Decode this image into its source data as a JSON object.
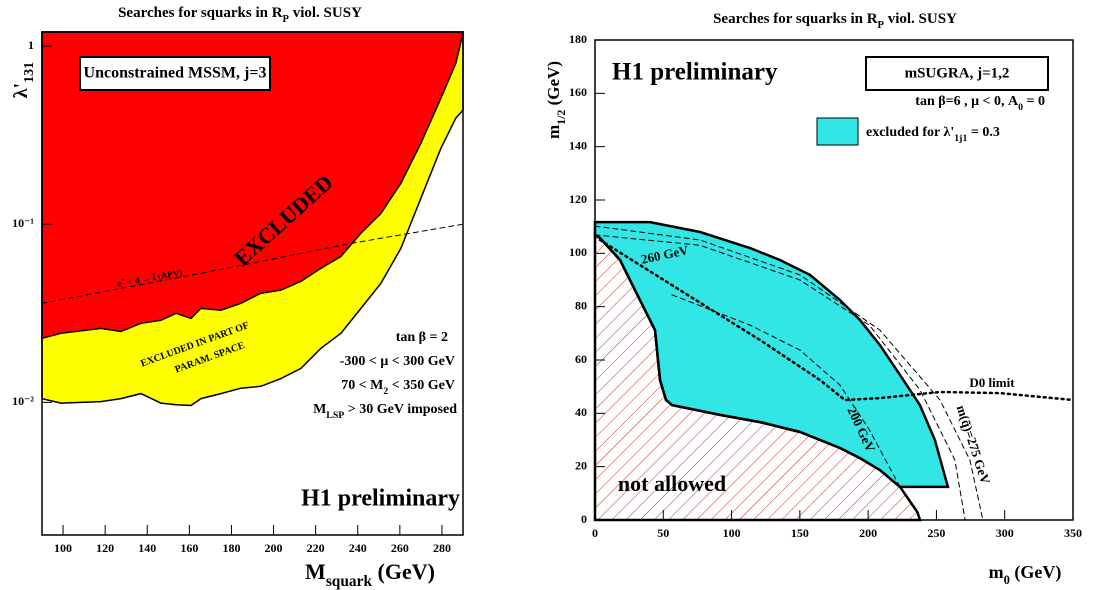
{
  "chart_data": [
    {
      "type": "area",
      "title": [
        {
          "t": "Searches for squarks in R"
        },
        {
          "sub": "P"
        },
        {
          "t": " viol. SUSY"
        }
      ],
      "xlabel": [
        {
          "t": "M"
        },
        {
          "sub": "squark"
        },
        {
          "t": " (GeV)"
        }
      ],
      "ylabel": [
        {
          "t": "λ'"
        },
        {
          "sub": "131"
        }
      ],
      "xlim": [
        90,
        290
      ],
      "xticks": [
        100,
        120,
        140,
        160,
        180,
        200,
        220,
        240,
        260,
        280
      ],
      "ylim": [
        0.0018,
        1.2
      ],
      "log_y": true,
      "yticks": [
        1,
        {
          "value": 0.1,
          "label": "10⁻¹"
        },
        {
          "value": 0.01,
          "label": "10⁻²"
        }
      ],
      "series": [
        {
          "kind": "fill",
          "color": "#ffff00",
          "x": [
            90,
            99,
            118,
            127.5,
            137,
            146.5,
            153.7,
            160.8,
            165.5,
            175,
            184.5,
            194,
            203.5,
            213,
            222.5,
            232,
            241.5,
            251,
            260.5,
            270,
            279.5,
            286.6,
            290
          ],
          "values": [
            0.0105,
            0.0099,
            0.0101,
            0.0105,
            0.0112,
            0.0099,
            0.0097,
            0.0096,
            0.0105,
            0.0112,
            0.012,
            0.0123,
            0.0136,
            0.0155,
            0.0201,
            0.0244,
            0.0337,
            0.0466,
            0.0733,
            0.14,
            0.267,
            0.394,
            0.437
          ]
        },
        {
          "kind": "fill",
          "color": "#ff0000",
          "x": [
            90,
            99,
            118,
            127.5,
            137,
            146.5,
            153.7,
            160.8,
            165.5,
            175,
            184.5,
            194,
            203.5,
            213,
            222.5,
            232,
            241.5,
            251,
            260.5,
            270,
            279.5,
            286.6,
            290
          ],
          "values": [
            0.0229,
            0.0244,
            0.026,
            0.025,
            0.0278,
            0.0289,
            0.0316,
            0.0296,
            0.0337,
            0.0329,
            0.036,
            0.041,
            0.0426,
            0.0478,
            0.0566,
            0.066,
            0.089,
            0.115,
            0.17,
            0.285,
            0.51,
            0.8,
            1.18
          ]
        },
        {
          "kind": "dashed",
          "color": "#000000",
          "x": [
            90,
            165.5,
            236.8,
            290
          ],
          "values": [
            0.036,
            0.053,
            0.078,
            0.1
          ]
        }
      ],
      "annotations": [
        "Unconstrained MSSM, j=3",
        "EXCLUDED",
        "EXCLUDED IN PART OF",
        "PARAM. SPACE",
        [
          {
            "t": "e"
          },
          {
            "sup": "+"
          },
          {
            "t": " + d → t̃ (APV)"
          }
        ],
        "tan β = 2",
        "-300 < μ < 300 GeV",
        [
          {
            "t": "70 < M"
          },
          {
            "sub": "2"
          },
          {
            "t": " < 350 GeV"
          }
        ],
        [
          {
            "t": "M"
          },
          {
            "sub": "LSP"
          },
          {
            "t": " > 30 GeV imposed"
          }
        ],
        "H1 preliminary"
      ]
    },
    {
      "type": "region",
      "title": [
        {
          "t": "Searches for squarks in R"
        },
        {
          "sub": "P"
        },
        {
          "t": " viol. SUSY"
        }
      ],
      "xlabel": [
        {
          "t": "m"
        },
        {
          "sub": "0"
        },
        {
          "t": " (GeV)"
        }
      ],
      "ylabel": [
        {
          "t": "m"
        },
        {
          "sub": "1/2"
        },
        {
          "t": " (GeV)"
        }
      ],
      "xlim": [
        0,
        350
      ],
      "xticks": [
        0,
        50,
        100,
        150,
        200,
        250,
        300,
        350
      ],
      "ylim": [
        0,
        180
      ],
      "yticks": [
        0,
        20,
        40,
        60,
        80,
        100,
        120,
        140,
        160,
        180
      ],
      "series": [
        {
          "kind": "polygon",
          "color": "#33e6e6",
          "name": [
            {
              "t": "excluded for λ'"
            },
            {
              "sub": "1j1"
            },
            {
              "t": " = 0.3"
            }
          ],
          "x": [
            0,
            40.3,
            76.9,
            113.5,
            135.4,
            157.4,
            179.4,
            194,
            208.6,
            223.3,
            237.9,
            248.9,
            258.4,
            223.3,
            208.6,
            194,
            179.4,
            150.1,
            120.8,
            91.5,
            56.4,
            52,
            47.6,
            43.9,
            32.9,
            18.3,
            3.7,
            0
          ],
          "values": [
            111.7,
            111.7,
            108,
            102,
            97.5,
            91.9,
            82.5,
            75,
            65.6,
            54.4,
            43.1,
            30,
            12.4,
            12.4,
            18.7,
            23.2,
            27,
            33,
            36.7,
            39.4,
            43.1,
            45,
            52.5,
            71.2,
            82.5,
            97.5,
            105.7,
            106.9
          ]
        },
        {
          "kind": "hatch",
          "color": "#c0392b",
          "x": [
            0,
            3.7,
            18.3,
            32.9,
            43.9,
            47.6,
            52,
            56.4,
            91.5,
            120.8,
            150.1,
            179.4,
            194,
            208.6,
            223.3,
            232,
            236,
            238,
            0
          ],
          "values": [
            106.9,
            105.7,
            97.5,
            82.5,
            71.2,
            52.5,
            45,
            43.1,
            39.4,
            36.7,
            33,
            27,
            23.2,
            18.7,
            12.4,
            6,
            3,
            0,
            0
          ]
        },
        {
          "kind": "dashed",
          "color": "#000000",
          "x": [
            0,
            76.9,
            150.1,
            208.6,
            252.6,
            274.5,
            284
          ],
          "values": [
            110.2,
            105,
            91.9,
            71.2,
            45,
            22.5,
            0
          ]
        },
        {
          "kind": "dashed",
          "color": "#000000",
          "x": [
            0,
            76.9,
            150.1,
            201,
            238,
            263.5,
            271
          ],
          "values": [
            106.9,
            103,
            90,
            73,
            48.8,
            22.5,
            0
          ]
        },
        {
          "kind": "dashed",
          "color": "#000000",
          "x": [
            56.4,
            113.5,
            150.1,
            179.4,
            201,
            223.3
          ],
          "values": [
            84.4,
            73.1,
            63.7,
            50.6,
            33.7,
            12.4
          ]
        },
        {
          "kind": "dotted",
          "color": "#000000",
          "x": [
            3.7,
            62.2,
            120.8,
            164.7,
            183,
            208.6,
            252.6,
            296.5,
            350
          ],
          "values": [
            105,
            86.2,
            67.5,
            52.5,
            45,
            45.7,
            48,
            47.6,
            45
          ]
        }
      ],
      "annotations": [
        "H1 preliminary",
        "mSUGRA, j=1,2",
        [
          {
            "t": "tan β=6 , μ < 0, A"
          },
          {
            "sub": "0"
          },
          {
            "t": " = 0"
          }
        ],
        "260 GeV",
        "200 GeV",
        "D0 limit",
        "m(q̃)=275 GeV",
        "not allowed"
      ]
    }
  ]
}
